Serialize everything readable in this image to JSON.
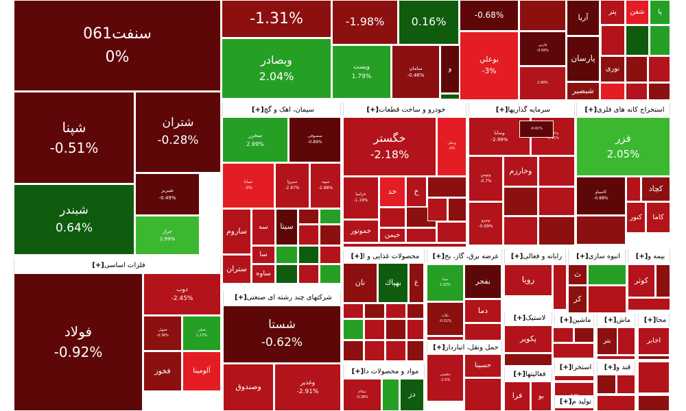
{
  "chart_data": {
    "type": "heatmap",
    "colors": {
      "deep_red": "#5e0708",
      "dark_red": "#8c1010",
      "red": "#b3131a",
      "bright_red": "#e41c23",
      "dark_green": "#0f5c0f",
      "green": "#25a025",
      "bright_green": "#3cb830"
    },
    "groups": [
      {
        "name": "سیمان، اهک و گچ"
      },
      {
        "name": "خودرو و ساخت قطعات"
      },
      {
        "name": "سرمایه گذاریها"
      },
      {
        "name": "استخراج کانه های فلزی"
      },
      {
        "name": "فلزات اساسی"
      },
      {
        "name": "محصولات غذایی و ا"
      },
      {
        "name": "عرضه برق، گاز، بخ"
      },
      {
        "name": "رایانه و فعالی"
      },
      {
        "name": "انبوه سازی"
      },
      {
        "name": "بیمه و"
      },
      {
        "name": "شرکتهای چند رشته ای صنعتی"
      },
      {
        "name": "حمل ونقل، انباردار"
      },
      {
        "name": "لاستیک"
      },
      {
        "name": "ماشین"
      },
      {
        "name": "ماش"
      },
      {
        "name": "محا"
      },
      {
        "name": "مواد و محصولات دا"
      },
      {
        "name": "فعالیتها"
      },
      {
        "name": "استخرا"
      },
      {
        "name": "قند و"
      },
      {
        "name": "تولید م"
      }
    ],
    "tiles": [
      {
        "symbol": "سنفت061",
        "change": 0
      },
      {
        "change": -1.31
      },
      {
        "change": -1.98
      },
      {
        "change": 0.16
      },
      {
        "change": -0.68
      },
      {
        "symbol": "آریا"
      },
      {
        "symbol": "پتر"
      },
      {
        "symbol": "شفن"
      },
      {
        "symbol": "پا"
      },
      {
        "symbol": "وبصادر",
        "change": 2.04
      },
      {
        "symbol": "ویست",
        "change": 1.79
      },
      {
        "symbol": "سامان",
        "change": -0.46
      },
      {
        "symbol": "و"
      },
      {
        "symbol": "بوعلي",
        "change": -3
      },
      {
        "symbol": "فارس",
        "change": -0.58
      },
      {
        "change": 2.99
      },
      {
        "symbol": "پارسان"
      },
      {
        "symbol": "شبصير"
      },
      {
        "symbol": "نوری"
      },
      {
        "symbol": "شپنا",
        "change": -0.51
      },
      {
        "symbol": "شتران",
        "change": -0.28
      },
      {
        "symbol": "شبريز",
        "change": -0.49
      },
      {
        "symbol": "شبندر",
        "change": 0.64
      },
      {
        "symbol": "حراز",
        "change": 2.99
      },
      {
        "symbol": "سخزر",
        "change": 2.99
      },
      {
        "symbol": "سصوفی",
        "change": -0.89
      },
      {
        "symbol": "سیانا",
        "change": -3
      },
      {
        "symbol": "سبزوا",
        "change": -2.97
      },
      {
        "symbol": "سپید",
        "change": -2.88
      },
      {
        "symbol": "سه"
      },
      {
        "symbol": "ساروم"
      },
      {
        "symbol": "سيتا"
      },
      {
        "symbol": "سا"
      },
      {
        "symbol": "ستران"
      },
      {
        "symbol": "ساوه"
      },
      {
        "symbol": "خگستر",
        "change": -2.18
      },
      {
        "symbol": "خزامیا",
        "change": -1.19
      },
      {
        "symbol": "خد"
      },
      {
        "symbol": "خ"
      },
      {
        "symbol": "خمحور"
      },
      {
        "symbol": "خموتور"
      },
      {
        "symbol": "خیمن"
      },
      {
        "symbol": "ونیکی",
        "change": -3
      },
      {
        "symbol": "وسایا",
        "change": -2.99
      },
      {
        "symbol": "وتجارت",
        "change": -1.41
      },
      {
        "symbol": "وتوس",
        "change": -0.7
      },
      {
        "symbol": "وخارزم"
      },
      {
        "symbol": "ونیرو",
        "change": -0.99
      },
      {
        "symbol": "فزر",
        "change": 2.05
      },
      {
        "symbol": "کچاد"
      },
      {
        "symbol": "کاسیاو",
        "change": -0.88
      },
      {
        "symbol": "کنور"
      },
      {
        "symbol": "کاما"
      },
      {
        "symbol": "فولاد",
        "change": -0.92
      },
      {
        "symbol": "ذوب",
        "change": -2.45
      },
      {
        "symbol": "فجهان",
        "change": -0.38
      },
      {
        "symbol": "فملی",
        "change": 1.17
      },
      {
        "symbol": "فخوز"
      },
      {
        "symbol": "آلومینا"
      },
      {
        "symbol": "شستا",
        "change": -0.62
      },
      {
        "symbol": "وغدیر",
        "change": -2.91
      },
      {
        "symbol": "وصندوق"
      },
      {
        "symbol": "نان"
      },
      {
        "symbol": "بهپاك"
      },
      {
        "symbol": "غ"
      },
      {
        "symbol": "بفجر"
      },
      {
        "symbol": "دما"
      },
      {
        "symbol": "بمپنا",
        "change": 1.02
      },
      {
        "symbol": "بکاب",
        "change": -0.51
      },
      {
        "symbol": "رویا"
      },
      {
        "symbol": "ث"
      },
      {
        "symbol": "کر"
      },
      {
        "symbol": "کوثر"
      },
      {
        "symbol": "پکویر"
      },
      {
        "symbol": "بتر"
      },
      {
        "symbol": "اخابر"
      },
      {
        "symbol": "حکشتی",
        "change": -2.9
      },
      {
        "symbol": "حسینا"
      },
      {
        "symbol": "شکام",
        "change": -0.38
      },
      {
        "symbol": "دز"
      },
      {
        "symbol": "فرا"
      },
      {
        "symbol": "بو"
      },
      {
        "change": -0.3
      },
      {
        "change": -0.41
      }
    ]
  }
}
